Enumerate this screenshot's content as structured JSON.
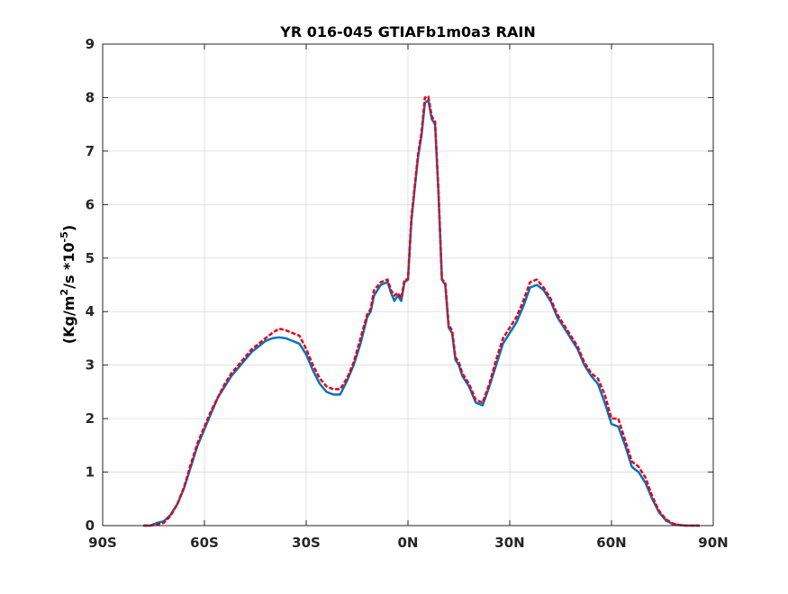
{
  "chart_data": {
    "type": "line",
    "title": "YR 016-045 GTIAFb1m0a3 RAIN",
    "ylabel_prefix": "(Kg/m",
    "ylabel_exp1": "2",
    "ylabel_mid": "/s   *10",
    "ylabel_exp2": "-5",
    "ylabel_suffix": ")",
    "xlabel": "",
    "xlim": [
      -90,
      90
    ],
    "ylim": [
      0,
      9
    ],
    "xticks": [
      -90,
      -60,
      -30,
      0,
      30,
      60,
      90
    ],
    "xtick_labels": [
      "90S",
      "60S",
      "30S",
      "0N",
      "30N",
      "60N",
      "90N"
    ],
    "yticks": [
      0,
      1,
      2,
      3,
      4,
      5,
      6,
      7,
      8,
      9
    ],
    "ytick_labels": [
      "0",
      "1",
      "2",
      "3",
      "4",
      "5",
      "6",
      "7",
      "8",
      "9"
    ],
    "grid": true,
    "series": [
      {
        "color": "#0072BD",
        "style": "solid",
        "x": [
          -78,
          -76,
          -74,
          -72,
          -70,
          -68,
          -66,
          -64,
          -62,
          -60,
          -58,
          -56,
          -54,
          -52,
          -50,
          -48,
          -46,
          -44,
          -42,
          -40,
          -38,
          -36,
          -34,
          -32,
          -30,
          -28,
          -26,
          -24,
          -22,
          -20,
          -18,
          -16,
          -14,
          -12,
          -11,
          -10,
          -8,
          -6,
          -5,
          -4,
          -3,
          -2,
          -1,
          0,
          1,
          2,
          3,
          4,
          5,
          6,
          7,
          8,
          9,
          10,
          11,
          12,
          13,
          14,
          15,
          16,
          18,
          20,
          22,
          24,
          26,
          28,
          30,
          32,
          34,
          36,
          38,
          40,
          42,
          44,
          46,
          48,
          50,
          52,
          54,
          56,
          58,
          60,
          62,
          64,
          66,
          68,
          70,
          72,
          74,
          76,
          78,
          80,
          82,
          84,
          86
        ],
        "y": [
          0.0,
          0.0,
          0.05,
          0.08,
          0.2,
          0.4,
          0.7,
          1.1,
          1.5,
          1.8,
          2.1,
          2.4,
          2.6,
          2.8,
          2.95,
          3.1,
          3.25,
          3.35,
          3.45,
          3.5,
          3.52,
          3.5,
          3.45,
          3.4,
          3.2,
          2.9,
          2.65,
          2.5,
          2.45,
          2.45,
          2.7,
          3.0,
          3.4,
          3.9,
          4.0,
          4.3,
          4.5,
          4.55,
          4.35,
          4.2,
          4.3,
          4.2,
          4.55,
          4.6,
          5.7,
          6.3,
          6.9,
          7.3,
          7.9,
          7.95,
          7.6,
          7.5,
          6.2,
          4.6,
          4.5,
          3.7,
          3.6,
          3.1,
          3.0,
          2.8,
          2.6,
          2.3,
          2.25,
          2.6,
          3.0,
          3.4,
          3.6,
          3.8,
          4.1,
          4.45,
          4.5,
          4.4,
          4.2,
          3.9,
          3.7,
          3.5,
          3.3,
          3.0,
          2.8,
          2.65,
          2.3,
          1.9,
          1.85,
          1.5,
          1.1,
          1.0,
          0.8,
          0.5,
          0.25,
          0.1,
          0.03,
          0.01,
          0.0,
          0.0,
          0.0
        ]
      },
      {
        "color": "#E6001A",
        "style": "dashed",
        "x": [
          -78,
          -76,
          -74,
          -72,
          -70,
          -68,
          -66,
          -64,
          -62,
          -60,
          -58,
          -56,
          -54,
          -52,
          -50,
          -48,
          -46,
          -44,
          -42,
          -40,
          -38,
          -36,
          -34,
          -32,
          -30,
          -28,
          -26,
          -24,
          -22,
          -20,
          -18,
          -16,
          -14,
          -12,
          -11,
          -10,
          -8,
          -6,
          -5,
          -4,
          -3,
          -2,
          -1,
          0,
          1,
          2,
          3,
          4,
          5,
          6,
          7,
          8,
          9,
          10,
          11,
          12,
          13,
          14,
          15,
          16,
          18,
          20,
          22,
          24,
          26,
          28,
          30,
          32,
          34,
          36,
          38,
          40,
          42,
          44,
          46,
          48,
          50,
          52,
          54,
          56,
          58,
          60,
          62,
          64,
          66,
          68,
          70,
          72,
          74,
          76,
          78,
          80,
          82,
          84,
          86
        ],
        "y": [
          0.0,
          0.0,
          0.02,
          0.05,
          0.18,
          0.4,
          0.72,
          1.15,
          1.55,
          1.85,
          2.15,
          2.4,
          2.65,
          2.85,
          3.0,
          3.15,
          3.3,
          3.4,
          3.5,
          3.6,
          3.68,
          3.65,
          3.6,
          3.55,
          3.3,
          3.0,
          2.75,
          2.6,
          2.55,
          2.55,
          2.75,
          3.05,
          3.5,
          3.95,
          4.05,
          4.4,
          4.55,
          4.6,
          4.4,
          4.3,
          4.35,
          4.25,
          4.6,
          4.6,
          5.75,
          6.35,
          6.95,
          7.35,
          8.0,
          8.02,
          7.65,
          7.55,
          6.25,
          4.6,
          4.55,
          3.75,
          3.65,
          3.15,
          3.05,
          2.85,
          2.65,
          2.35,
          2.3,
          2.65,
          3.1,
          3.5,
          3.7,
          3.9,
          4.2,
          4.55,
          4.6,
          4.45,
          4.25,
          3.95,
          3.75,
          3.55,
          3.35,
          3.05,
          2.85,
          2.75,
          2.45,
          2.0,
          2.0,
          1.6,
          1.2,
          1.1,
          0.9,
          0.55,
          0.28,
          0.12,
          0.04,
          0.01,
          0.0,
          0.0,
          0.0
        ]
      }
    ]
  }
}
